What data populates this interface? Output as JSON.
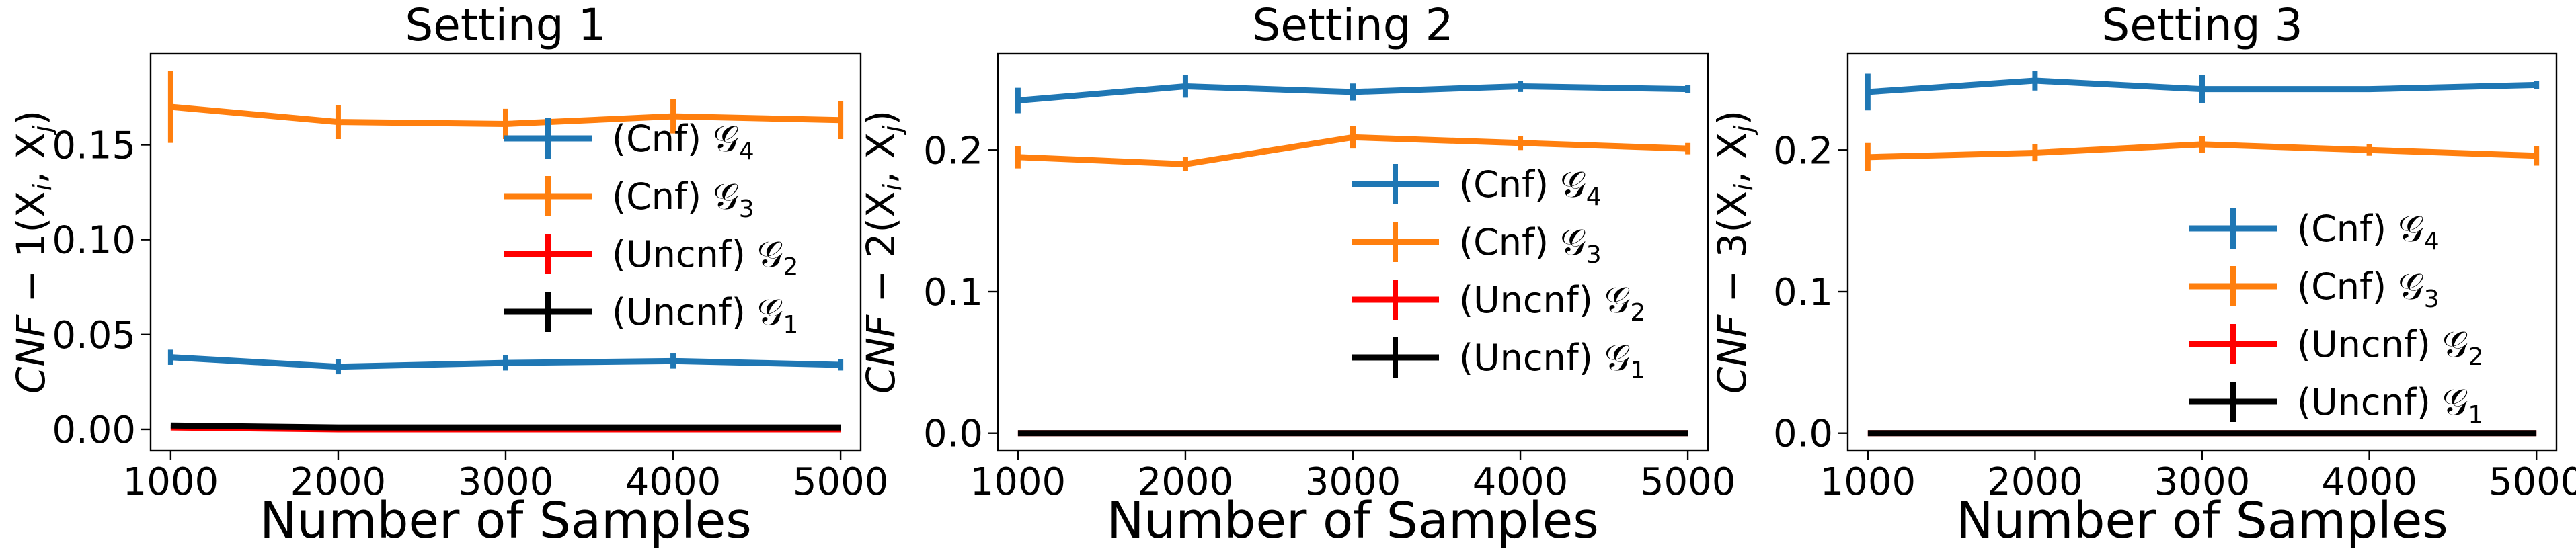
{
  "chart_data": [
    {
      "type": "line",
      "title": "Setting 1",
      "xlabel": "Number of Samples",
      "ylabel": "CNF − 1(X_i, X_j)",
      "ylabel_prefix": "CNF",
      "ylabel_suffix": " − 1(X",
      "x": [
        1000,
        2000,
        3000,
        4000,
        5000
      ],
      "xticks": [
        "1000",
        "2000",
        "3000",
        "4000",
        "5000"
      ],
      "xlim": [
        880,
        5120
      ],
      "ylim": [
        -0.011,
        0.198
      ],
      "yticks": [
        0.0,
        0.05,
        0.1,
        0.15
      ],
      "ytick_labels": [
        "0.00",
        "0.05",
        "0.10",
        "0.15"
      ],
      "legend_placement": "right",
      "series": [
        {
          "name": "(Cnf) 𝒢",
          "sub": "4",
          "color": "#1f77b4",
          "values": [
            0.038,
            0.033,
            0.035,
            0.036,
            0.034
          ],
          "errors": [
            0.004,
            0.004,
            0.004,
            0.004,
            0.003
          ]
        },
        {
          "name": "(Cnf) 𝒢",
          "sub": "3",
          "color": "#ff7f0e",
          "values": [
            0.17,
            0.162,
            0.161,
            0.165,
            0.163
          ],
          "errors": [
            0.019,
            0.009,
            0.008,
            0.009,
            0.01
          ]
        },
        {
          "name": "(Uncnf) 𝒢",
          "sub": "2",
          "color": "#ff0000",
          "values": [
            0.001,
            0.0,
            0.0,
            0.0,
            0.0
          ],
          "errors": [
            0.0,
            0.0,
            0.0,
            0.0,
            0.0
          ]
        },
        {
          "name": "(Uncnf) 𝒢",
          "sub": "1",
          "color": "#000000",
          "values": [
            0.002,
            0.001,
            0.001,
            0.001,
            0.001
          ],
          "errors": [
            0.0,
            0.0,
            0.0,
            0.0,
            0.0
          ]
        }
      ]
    },
    {
      "type": "line",
      "title": "Setting 2",
      "xlabel": "Number of Samples",
      "ylabel": "CNF − 2(X_i, X_j)",
      "ylabel_prefix": "CNF",
      "ylabel_suffix": " − 2(X",
      "x": [
        1000,
        2000,
        3000,
        4000,
        5000
      ],
      "xticks": [
        "1000",
        "2000",
        "3000",
        "4000",
        "5000"
      ],
      "xlim": [
        880,
        5120
      ],
      "ylim": [
        -0.012,
        0.268
      ],
      "yticks": [
        0.0,
        0.1,
        0.2
      ],
      "ytick_labels": [
        "0.0",
        "0.1",
        "0.2"
      ],
      "legend_placement": "upper right",
      "series": [
        {
          "name": "(Cnf) 𝒢",
          "sub": "4",
          "color": "#1f77b4",
          "values": [
            0.235,
            0.245,
            0.241,
            0.245,
            0.243
          ],
          "errors": [
            0.009,
            0.008,
            0.006,
            0.004,
            0.003
          ]
        },
        {
          "name": "(Cnf) 𝒢",
          "sub": "3",
          "color": "#ff7f0e",
          "values": [
            0.195,
            0.19,
            0.209,
            0.205,
            0.201
          ],
          "errors": [
            0.008,
            0.005,
            0.008,
            0.005,
            0.004
          ]
        },
        {
          "name": "(Uncnf) 𝒢",
          "sub": "2",
          "color": "#ff0000",
          "values": [
            0.0,
            0.0,
            0.0,
            0.0,
            0.0
          ],
          "errors": [
            0.0,
            0.0,
            0.0,
            0.0,
            0.0
          ]
        },
        {
          "name": "(Uncnf) 𝒢",
          "sub": "1",
          "color": "#000000",
          "values": [
            0.0,
            0.0,
            0.0,
            0.0,
            0.0
          ],
          "errors": [
            0.0,
            0.0,
            0.0,
            0.0,
            0.0
          ]
        }
      ]
    },
    {
      "type": "line",
      "title": "Setting 3",
      "xlabel": "Number of Samples",
      "ylabel": "CNF − 3(X_i, X_j)",
      "ylabel_prefix": "CNF",
      "ylabel_suffix": " − 3(X",
      "x": [
        1000,
        2000,
        3000,
        4000,
        5000
      ],
      "xticks": [
        "1000",
        "2000",
        "3000",
        "4000",
        "5000"
      ],
      "xlim": [
        880,
        5120
      ],
      "ylim": [
        -0.012,
        0.268
      ],
      "yticks": [
        0.0,
        0.1,
        0.2
      ],
      "ytick_labels": [
        "0.0",
        "0.1",
        "0.2"
      ],
      "legend_placement": "lower right",
      "series": [
        {
          "name": "(Cnf) 𝒢",
          "sub": "4",
          "color": "#1f77b4",
          "values": [
            0.241,
            0.249,
            0.243,
            0.243,
            0.246
          ],
          "errors": [
            0.013,
            0.007,
            0.01,
            0.002,
            0.003
          ]
        },
        {
          "name": "(Cnf) 𝒢",
          "sub": "3",
          "color": "#ff7f0e",
          "values": [
            0.195,
            0.198,
            0.204,
            0.2,
            0.196
          ],
          "errors": [
            0.01,
            0.006,
            0.006,
            0.004,
            0.007
          ]
        },
        {
          "name": "(Uncnf) 𝒢",
          "sub": "2",
          "color": "#ff0000",
          "values": [
            0.0,
            0.0,
            0.0,
            0.0,
            0.0
          ],
          "errors": [
            0.0,
            0.0,
            0.0,
            0.0,
            0.0
          ]
        },
        {
          "name": "(Uncnf) 𝒢",
          "sub": "1",
          "color": "#000000",
          "values": [
            0.0,
            0.0,
            0.0,
            0.0,
            0.0
          ],
          "errors": [
            0.0,
            0.0,
            0.0,
            0.0,
            0.0
          ]
        }
      ]
    }
  ]
}
